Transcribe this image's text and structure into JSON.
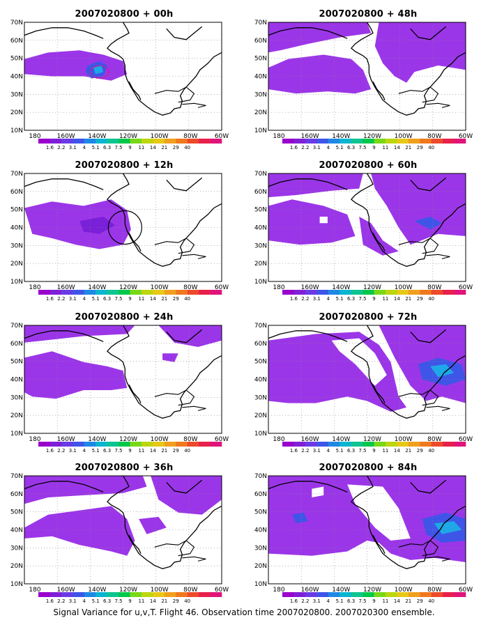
{
  "panels": [
    {
      "title": "2007020800 + 00h",
      "features": "f00"
    },
    {
      "title": "2007020800 + 48h",
      "features": "f48"
    },
    {
      "title": "2007020800 + 12h",
      "features": "f12"
    },
    {
      "title": "2007020800 + 60h",
      "features": "f60"
    },
    {
      "title": "2007020800 + 24h",
      "features": "f24"
    },
    {
      "title": "2007020800 + 72h",
      "features": "f72"
    },
    {
      "title": "2007020800 + 36h",
      "features": "f36"
    },
    {
      "title": "2007020800 + 84h",
      "features": "f84"
    }
  ],
  "lat_labels": [
    "70N",
    "60N",
    "50N",
    "40N",
    "30N",
    "20N",
    "10N"
  ],
  "lon_labels": [
    "180",
    "160W",
    "140W",
    "120W",
    "100W",
    "80W",
    "60W"
  ],
  "colorbar": {
    "colors": [
      "#9900cc",
      "#7f1fd6",
      "#6a3ae6",
      "#3f55e8",
      "#1e88e5",
      "#0ab5d0",
      "#0fc490",
      "#00c84a",
      "#78d818",
      "#bcd60f",
      "#e8c817",
      "#f0a01e",
      "#f0781e",
      "#ec4a2a",
      "#e8204c",
      "#e0147a"
    ],
    "labels": [
      "1.6",
      "2.2",
      "3.1",
      "4",
      "5.1",
      "6.3",
      "7.5",
      "9",
      "11",
      "14",
      "21",
      "29",
      "40"
    ]
  },
  "colors": {
    "purple": "#9b36e8",
    "purple_dark": "#7a20d8",
    "blue": "#3f55e8",
    "cyan": "#1ea8e8",
    "magenta": "#e0147a"
  },
  "footer": "Signal Variance for u,v,T. Flight 46. Observation time 2007020800. 2007020300 ensemble."
}
